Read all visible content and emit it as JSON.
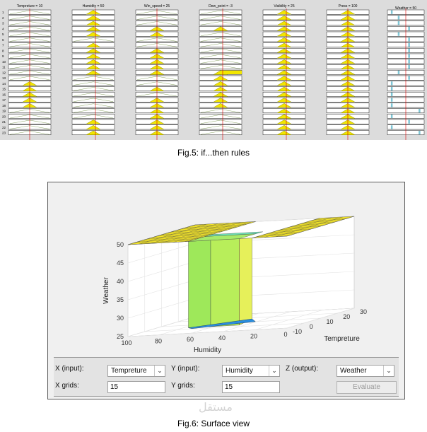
{
  "fig5": {
    "caption": "Fig.5: if...then rules",
    "columns": [
      {
        "title": "Tempreture = 10",
        "pos": 0.5
      },
      {
        "title": "Humidity = 50",
        "pos": 0.55
      },
      {
        "title": "Win_speed = 25",
        "pos": 0.5
      },
      {
        "title": "Dew_point = -3",
        "pos": 0.55
      },
      {
        "title": "Visibility = 25",
        "pos": 0.55
      },
      {
        "title": "Press = 100",
        "pos": 0.5
      }
    ],
    "output_column": {
      "title": "Weather = 50"
    },
    "row_numbers": [
      "1",
      "2",
      "3",
      "4",
      "5",
      "6",
      "7",
      "8",
      "9",
      "10",
      "11",
      "12",
      "13",
      "14",
      "15",
      "16",
      "17",
      "18",
      "19",
      "20",
      "21",
      "22",
      "23"
    ],
    "activations": [
      [
        0,
        1,
        0,
        0,
        1,
        1
      ],
      [
        0,
        1,
        0,
        0,
        1,
        1
      ],
      [
        0,
        1,
        0,
        0,
        1,
        1
      ],
      [
        0,
        1,
        1,
        1,
        1,
        1
      ],
      [
        0,
        1,
        1,
        0,
        1,
        1
      ],
      [
        0,
        0,
        0,
        0,
        1,
        1
      ],
      [
        0,
        1,
        0,
        0,
        1,
        1
      ],
      [
        0,
        1,
        1,
        0,
        1,
        1
      ],
      [
        0,
        1,
        1,
        0,
        1,
        1
      ],
      [
        0,
        1,
        1,
        0,
        1,
        1
      ],
      [
        0,
        1,
        1,
        0,
        1,
        1
      ],
      [
        0,
        1,
        1,
        1,
        1,
        1
      ],
      [
        0,
        0,
        0,
        1,
        1,
        1
      ],
      [
        1,
        0,
        0,
        1,
        1,
        1
      ],
      [
        1,
        0,
        1,
        1,
        1,
        1
      ],
      [
        1,
        0,
        0,
        1,
        1,
        1
      ],
      [
        1,
        0,
        1,
        1,
        1,
        1
      ],
      [
        1,
        0,
        1,
        1,
        1,
        1
      ],
      [
        0,
        0,
        1,
        0,
        1,
        1
      ],
      [
        0,
        0,
        1,
        0,
        1,
        1
      ],
      [
        0,
        1,
        1,
        0,
        1,
        1
      ],
      [
        0,
        1,
        1,
        0,
        1,
        1
      ],
      [
        0,
        1,
        1,
        0,
        1,
        1
      ]
    ],
    "weather_marks": [
      0.1,
      0.3,
      0.3,
      0.6,
      0.3,
      0.6,
      0.6,
      0.6,
      0.6,
      0.6,
      0.6,
      0.3,
      0.6,
      0.1,
      0.1,
      0.1,
      0.1,
      0.1,
      0.9,
      0.1,
      0.6,
      0.1,
      0.9
    ]
  },
  "fig6": {
    "caption": "Fig.6: Surface view",
    "chart_data": {
      "type": "surface",
      "x_axis": {
        "label": "Tempreture",
        "ticks": [
          "-10",
          "0",
          "10",
          "20",
          "30"
        ]
      },
      "y_axis": {
        "label": "Humidity",
        "ticks": [
          "100",
          "80",
          "60",
          "40",
          "20",
          "0"
        ]
      },
      "z_axis": {
        "label": "Weather",
        "ticks": [
          "25",
          "30",
          "35",
          "40",
          "45",
          "50"
        ],
        "range": [
          25,
          50
        ]
      },
      "description_values": {
        "plateau": 50,
        "well_min": 26.5
      }
    },
    "controls": {
      "x_input_label": "X (input):",
      "x_input_value": "Tempreture",
      "y_input_label": "Y (input):",
      "y_input_value": "Humidity",
      "z_output_label": "Z (output):",
      "z_output_value": "Weather",
      "x_grids_label": "X grids:",
      "x_grids_value": "15",
      "y_grids_label": "Y grids:",
      "y_grids_value": "15",
      "evaluate_label": "Evaluate"
    },
    "colors": {
      "plateau": "#f5e62a",
      "wall_green": "#9ee85a",
      "wall_cyan": "#5ee0b0",
      "bottom_blue": "#2a8ee0"
    }
  },
  "watermark": "مستقل"
}
